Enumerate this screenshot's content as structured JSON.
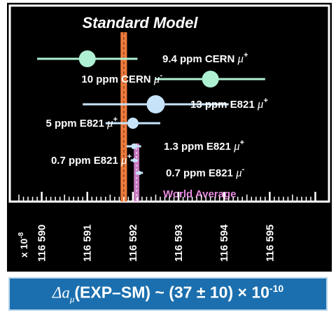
{
  "chart_data": {
    "type": "scatter",
    "title": "Standard Model",
    "axis_multiplier": "x 10",
    "axis_multiplier_exp": "-8",
    "xlim": [
      116589.3,
      116596.3
    ],
    "x_ticks": [
      "116 590",
      "116 591",
      "116 592",
      "116 593",
      "116 594",
      "116 595"
    ],
    "x_tick_values": [
      116590,
      116591,
      116592,
      116593,
      116594,
      116595
    ],
    "standard_model": {
      "value": 116591.8,
      "uncertainty": 0.07
    },
    "series": [
      {
        "name": "9.4 ppm CERN",
        "particle_sign": "+",
        "value": 116591.0,
        "error": 1.1
      },
      {
        "name": "10 ppm CERN",
        "particle_sign": "-",
        "value": 116593.7,
        "error": 1.2
      },
      {
        "name": "13 ppm E821",
        "particle_sign": "+",
        "value": 116592.5,
        "error": 1.6
      },
      {
        "name": "5 ppm E821",
        "particle_sign": "+",
        "value": 116592.0,
        "error": 0.6
      },
      {
        "name": "1.3 ppm E821",
        "particle_sign": "+",
        "value": 116592.02,
        "error": 0.16
      },
      {
        "name": "0.7 ppm E821",
        "particle_sign": "+",
        "value": 116592.03,
        "error": 0.08
      },
      {
        "name": "0.7 ppm E821",
        "particle_sign": "-",
        "value": 116592.14,
        "error": 0.08
      }
    ],
    "world_average": {
      "name": "World Average",
      "value": 116592.08,
      "uncertainty": 0.06
    }
  },
  "result": {
    "delta_symbol": "Δ",
    "a_symbol": "a",
    "mu_subscript": "μ",
    "expression": "(EXP–SM) ~ (37 ± 10) × 10",
    "exponent": "-10"
  },
  "colors": {
    "plot_background": "#000000",
    "frame": "#ffffff",
    "cern_points": "#aef0d2",
    "e821_points": "#c7e3fa",
    "standard_model_band": "#ee7a3c",
    "world_average": "#e98ce0",
    "banner_background": "#1b6fae"
  }
}
